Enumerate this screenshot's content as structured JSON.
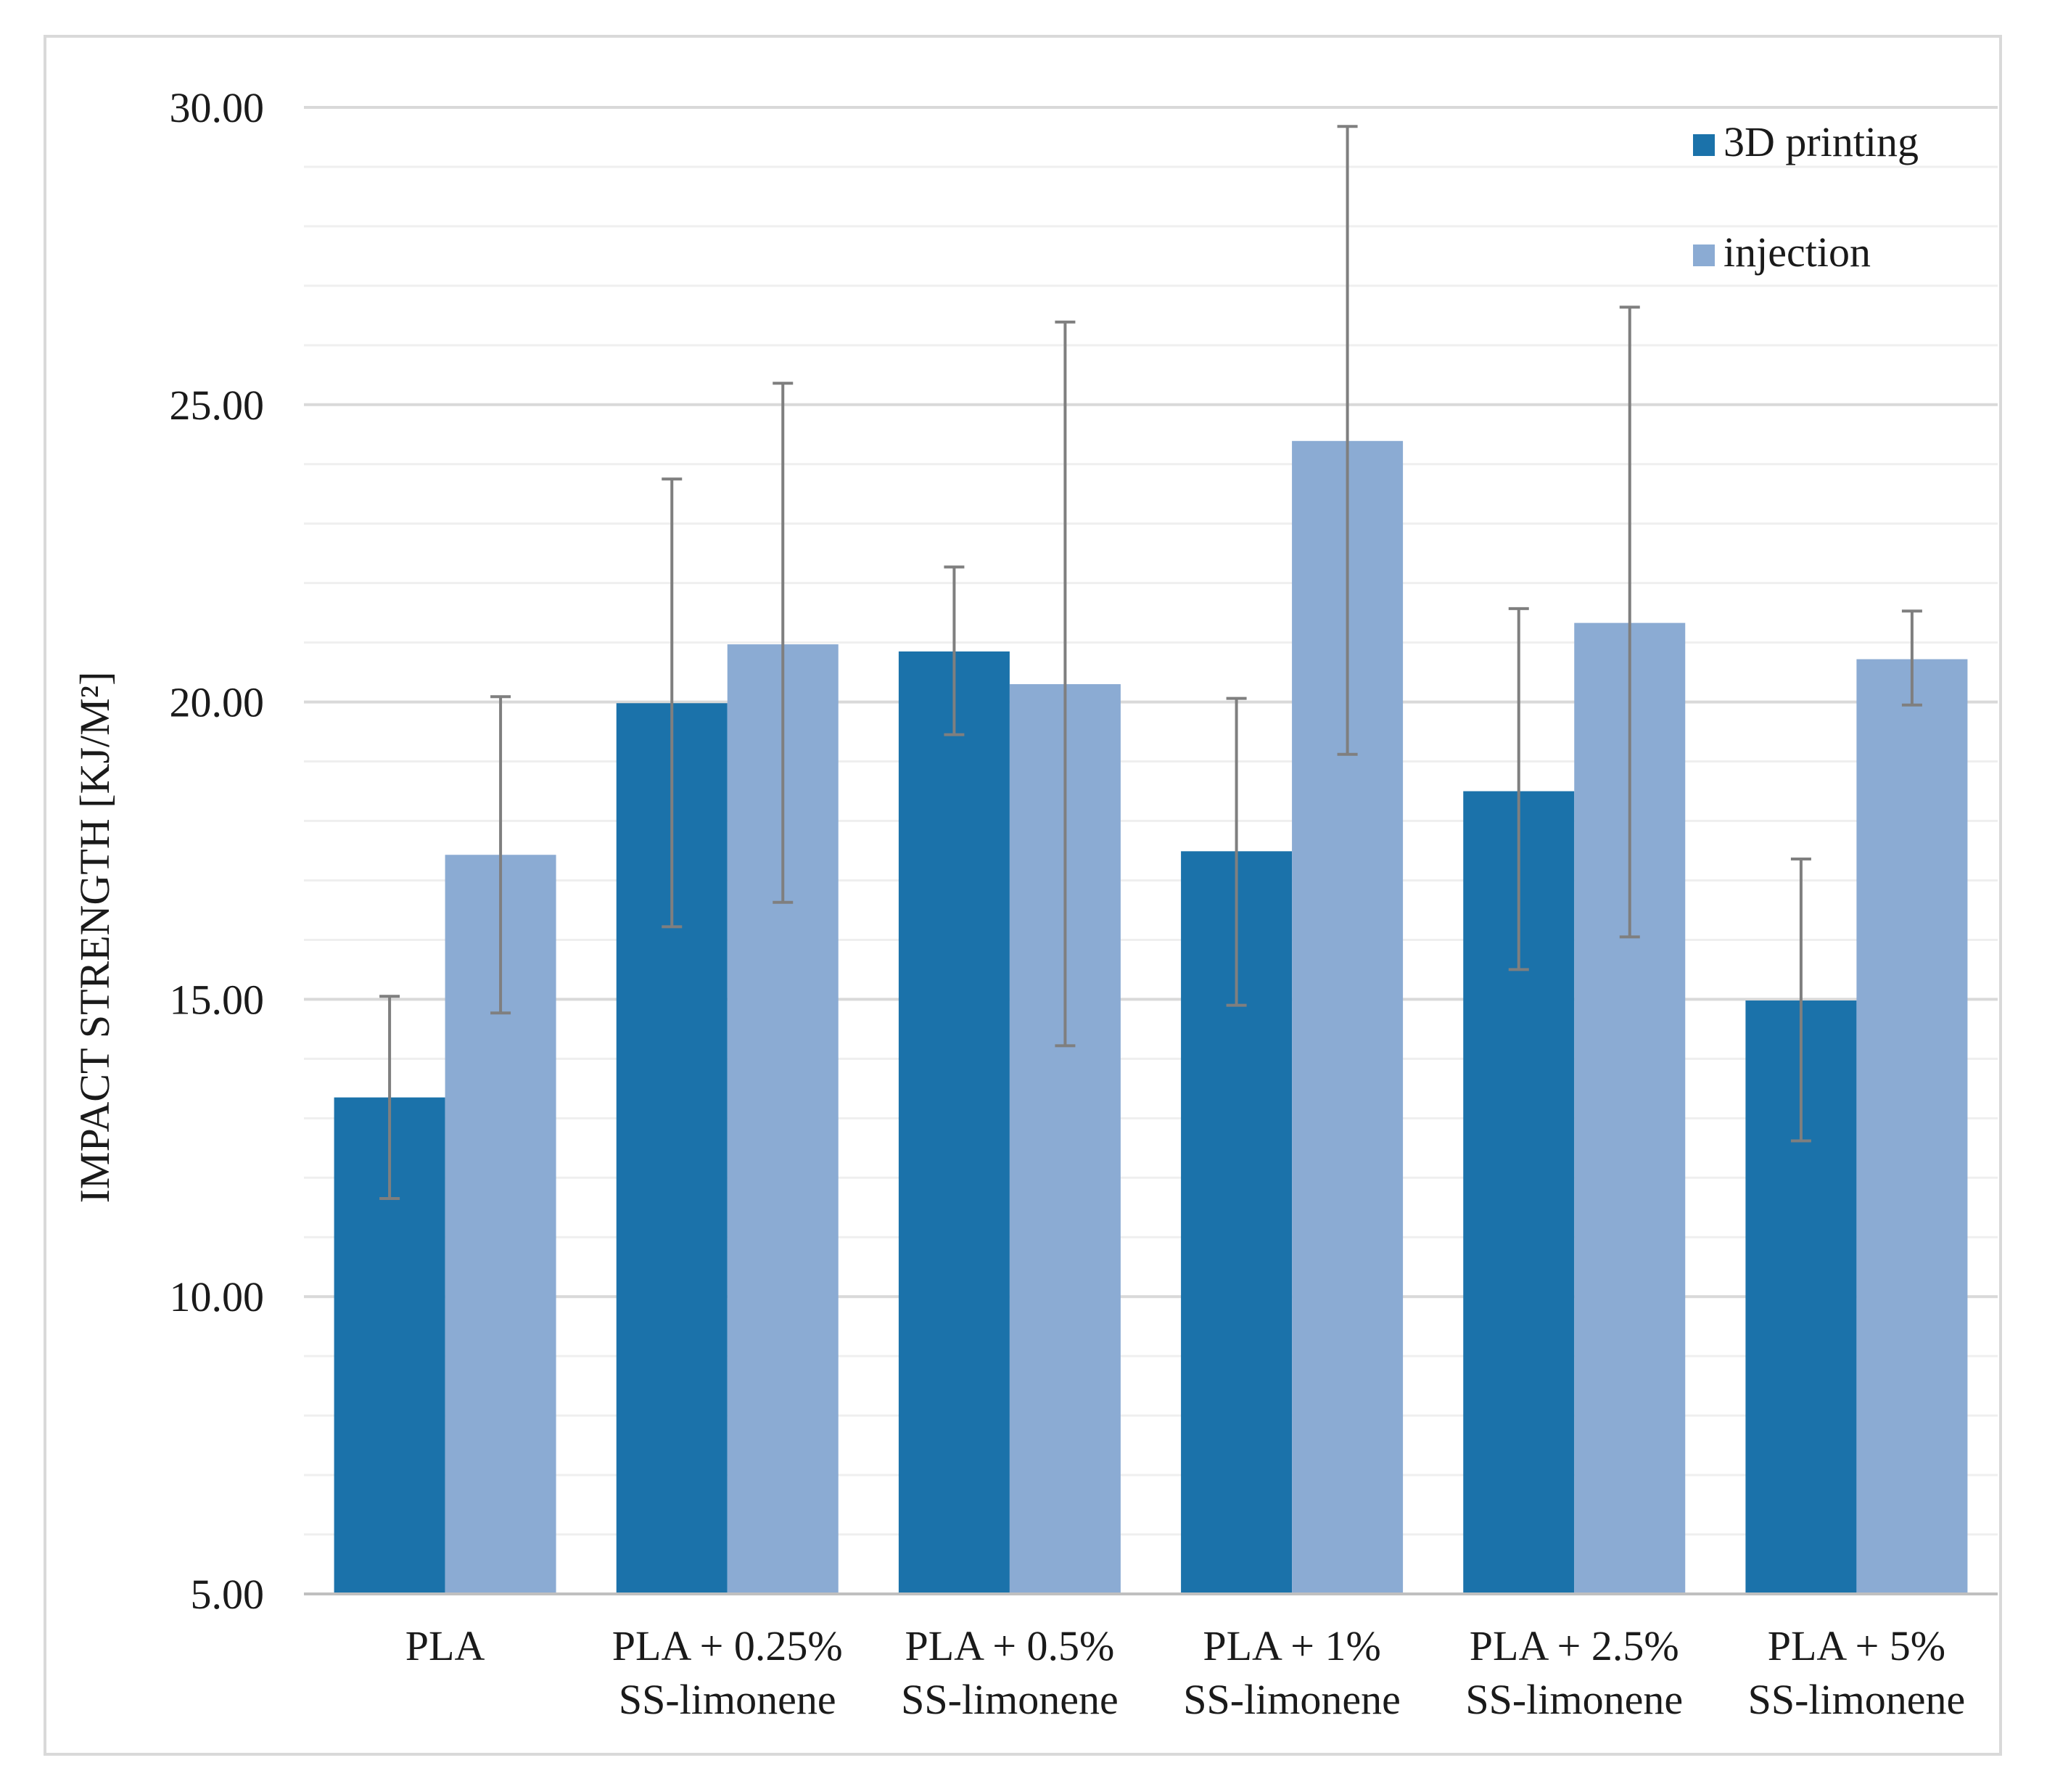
{
  "chart_data": {
    "type": "bar",
    "title": "",
    "xlabel": "",
    "ylabel": "IMPACT STRENGTH [KJ/M²]",
    "ylim": [
      5,
      30
    ],
    "major_ticks": [
      5,
      10,
      15,
      20,
      25,
      30
    ],
    "tick_labels": [
      "5.00",
      "10.00",
      "15.00",
      "20.00",
      "25.00",
      "30.00"
    ],
    "minor_step": 1,
    "grid": true,
    "legend_position": "top-right",
    "categories": [
      [
        "PLA"
      ],
      [
        "PLA + 0.25%",
        "SS-limonene"
      ],
      [
        "PLA + 0.5%",
        "SS-limonene"
      ],
      [
        "PLA + 1%",
        "SS-limonene"
      ],
      [
        "PLA + 2.5%",
        "SS-limonene"
      ],
      [
        "PLA + 5%",
        "SS-limonene"
      ]
    ],
    "series": [
      {
        "name": "3D printing",
        "color": "#1b72aa",
        "values": [
          13.35,
          19.98,
          20.85,
          17.49,
          18.5,
          14.98
        ],
        "error_low": [
          11.65,
          16.22,
          19.45,
          14.9,
          15.5,
          12.62
        ],
        "error_high": [
          15.05,
          23.75,
          22.27,
          20.06,
          21.57,
          17.36
        ]
      },
      {
        "name": "injection",
        "color": "#8babd3",
        "values": [
          17.43,
          20.97,
          20.3,
          24.39,
          21.33,
          20.72
        ],
        "error_low": [
          14.77,
          16.63,
          14.22,
          19.12,
          16.05,
          19.95
        ],
        "error_high": [
          20.09,
          25.36,
          26.39,
          29.68,
          26.64,
          21.53
        ]
      }
    ],
    "error_bar_color": "#7f7f7f",
    "grid_major_color": "#d9d9d9",
    "grid_minor_color": "#efefef"
  }
}
